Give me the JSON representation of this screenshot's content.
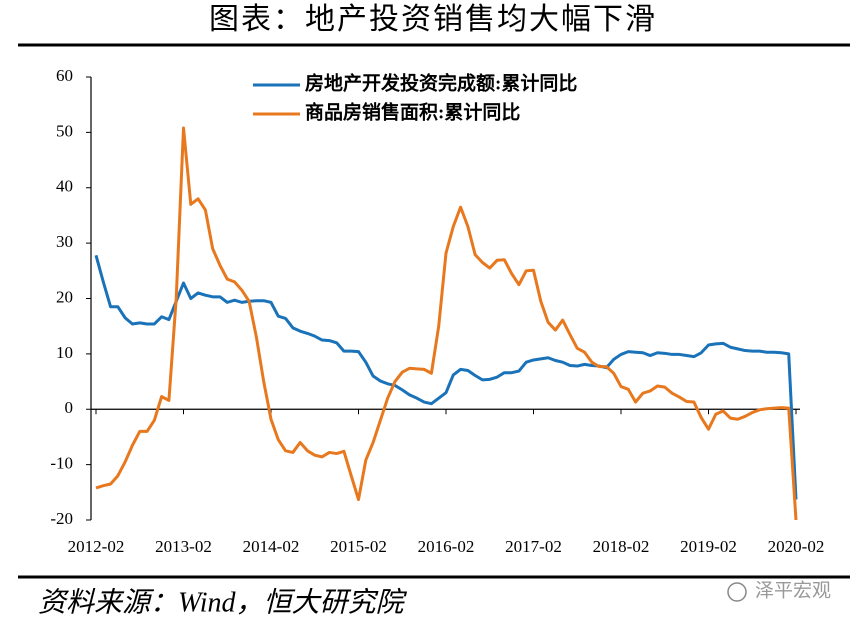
{
  "chart_data": {
    "type": "line",
    "title": "图表：地产投资销售均大幅下滑",
    "source": "资料来源：Wind，恒大研究院",
    "watermark": "泽平宏观",
    "categories": [
      "2012-02",
      null,
      null,
      null,
      null,
      null,
      null,
      null,
      null,
      null,
      null,
      null,
      "2013-02",
      null,
      null,
      null,
      null,
      null,
      null,
      null,
      null,
      null,
      null,
      null,
      "2014-02",
      null,
      null,
      null,
      null,
      null,
      null,
      null,
      null,
      null,
      null,
      null,
      "2015-02",
      null,
      null,
      null,
      null,
      null,
      null,
      null,
      null,
      null,
      null,
      null,
      "2016-02",
      null,
      null,
      null,
      null,
      null,
      null,
      null,
      null,
      null,
      null,
      null,
      "2017-02",
      null,
      null,
      null,
      null,
      null,
      null,
      null,
      null,
      null,
      null,
      null,
      "2018-02",
      null,
      null,
      null,
      null,
      null,
      null,
      null,
      null,
      null,
      null,
      null,
      "2019-02",
      null,
      null,
      null,
      null,
      null,
      null,
      null,
      null,
      null,
      null,
      null,
      "2020-02"
    ],
    "series": [
      {
        "name": "房地产开发投资完成额:累计同比",
        "color": "#1a72b8",
        "values": [
          27.8,
          23.0,
          18.5,
          18.5,
          16.5,
          15.4,
          15.6,
          15.4,
          15.4,
          16.7,
          16.2,
          19.5,
          22.8,
          20.0,
          21.0,
          20.6,
          20.3,
          20.3,
          19.3,
          19.7,
          19.3,
          19.5,
          19.6,
          19.6,
          19.3,
          16.8,
          16.4,
          14.7,
          14.1,
          13.7,
          13.2,
          12.5,
          12.4,
          12.0,
          10.5,
          10.5,
          10.4,
          8.5,
          6.0,
          5.1,
          4.6,
          4.3,
          3.5,
          2.6,
          2.0,
          1.3,
          1.0,
          2.0,
          3.0,
          6.2,
          7.2,
          7.0,
          6.1,
          5.3,
          5.4,
          5.8,
          6.6,
          6.6,
          6.9,
          8.5,
          8.9,
          9.1,
          9.3,
          8.8,
          8.5,
          7.9,
          7.8,
          8.1,
          7.9,
          7.8,
          7.5,
          9.0,
          9.9,
          10.4,
          10.3,
          10.2,
          9.7,
          10.2,
          10.1,
          9.9,
          9.9,
          9.7,
          9.5,
          10.2,
          11.6,
          11.8,
          11.9,
          11.2,
          10.9,
          10.6,
          10.5,
          10.5,
          10.3,
          10.3,
          10.2,
          10.0,
          -16.3
        ]
      },
      {
        "name": "商品房销售面积:累计同比",
        "color": "#e8781e",
        "values": [
          -14.2,
          -13.8,
          -13.5,
          -12.0,
          -9.5,
          -6.5,
          -4.0,
          -4.0,
          -2.0,
          2.3,
          1.6,
          20.0,
          50.8,
          37.0,
          38.0,
          36.0,
          29.0,
          26.0,
          23.5,
          23.0,
          21.5,
          19.5,
          13.0,
          5.0,
          -1.8,
          -5.5,
          -7.5,
          -7.8,
          -6.0,
          -7.5,
          -8.3,
          -8.6,
          -7.8,
          -8.0,
          -7.6,
          -12.0,
          -16.3,
          -9.2,
          -6.0,
          -2.0,
          2.0,
          5.0,
          6.7,
          7.4,
          7.3,
          7.2,
          6.5,
          15.0,
          28.2,
          33.0,
          36.5,
          33.0,
          27.9,
          26.5,
          25.5,
          26.9,
          27.0,
          24.5,
          22.5,
          25.0,
          25.1,
          19.5,
          15.7,
          14.3,
          16.1,
          13.5,
          11.0,
          10.3,
          8.5,
          7.7,
          7.7,
          6.5,
          4.1,
          3.6,
          1.3,
          2.9,
          3.3,
          4.2,
          4.0,
          2.9,
          2.2,
          1.4,
          1.3,
          -1.5,
          -3.6,
          -0.9,
          -0.3,
          -1.6,
          -1.8,
          -1.3,
          -0.6,
          -0.1,
          0.1,
          0.2,
          0.3,
          0.2,
          -20.0
        ]
      }
    ],
    "ylim": [
      -20,
      60
    ],
    "yticks": [
      -20,
      -10,
      0,
      10,
      20,
      30,
      40,
      50,
      60
    ],
    "legend": "upper left"
  }
}
